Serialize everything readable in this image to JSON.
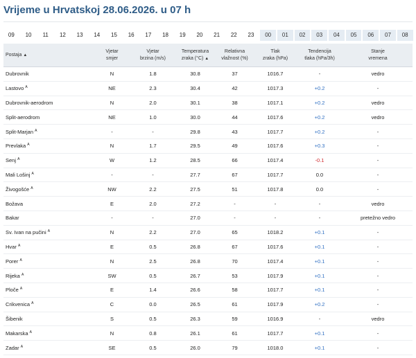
{
  "title": "Vrijeme u Hrvatskoj 28.06.2026. u 07 h",
  "hours": [
    "09",
    "10",
    "11",
    "12",
    "13",
    "14",
    "15",
    "16",
    "17",
    "18",
    "19",
    "20",
    "21",
    "22",
    "23",
    "00",
    "01",
    "02",
    "03",
    "04",
    "05",
    "06",
    "07",
    "08"
  ],
  "next_day_from_index": 15,
  "headers": {
    "station": "Postaja",
    "sort_icon": "▲",
    "wind_dir": [
      "Vjetar",
      "smjer"
    ],
    "wind_speed": [
      "Vjetar",
      "brzina (m/s)"
    ],
    "temp": [
      "Temperatura",
      "zraka (°C)"
    ],
    "humidity": [
      "Relativna",
      "vlažnost (%)"
    ],
    "pressure": [
      "Tlak",
      "zraka (hPa)"
    ],
    "tendency": [
      "Tendencija",
      "tlaka (hPa/3h)"
    ],
    "weather": [
      "Stanje",
      "vremena"
    ]
  },
  "sup_marker": "A",
  "rows": [
    {
      "station": "Dubrovnik",
      "auto": false,
      "dir": "N",
      "speed": "1.8",
      "temp": "30.8",
      "hum": "37",
      "pres": "1016.7",
      "tend": "-",
      "state": "vedro"
    },
    {
      "station": "Lastovo",
      "auto": true,
      "dir": "NE",
      "speed": "2.3",
      "temp": "30.4",
      "hum": "42",
      "pres": "1017.3",
      "tend": "+0.2",
      "state": "-"
    },
    {
      "station": "Dubrovnik-aerodrom",
      "auto": false,
      "dir": "N",
      "speed": "2.0",
      "temp": "30.1",
      "hum": "38",
      "pres": "1017.1",
      "tend": "+0.2",
      "state": "vedro"
    },
    {
      "station": "Split-aerodrom",
      "auto": false,
      "dir": "NE",
      "speed": "1.0",
      "temp": "30.0",
      "hum": "44",
      "pres": "1017.6",
      "tend": "+0.2",
      "state": "vedro"
    },
    {
      "station": "Split-Marjan",
      "auto": true,
      "dir": "-",
      "speed": "-",
      "temp": "29.8",
      "hum": "43",
      "pres": "1017.7",
      "tend": "+0.2",
      "state": "-"
    },
    {
      "station": "Prevlaka",
      "auto": true,
      "dir": "N",
      "speed": "1.7",
      "temp": "29.5",
      "hum": "49",
      "pres": "1017.6",
      "tend": "+0.3",
      "state": "-"
    },
    {
      "station": "Senj",
      "auto": true,
      "dir": "W",
      "speed": "1.2",
      "temp": "28.5",
      "hum": "66",
      "pres": "1017.4",
      "tend": "-0.1",
      "state": "-"
    },
    {
      "station": "Mali Lošinj",
      "auto": true,
      "dir": "-",
      "speed": "-",
      "temp": "27.7",
      "hum": "67",
      "pres": "1017.7",
      "tend": "0.0",
      "state": "-"
    },
    {
      "station": "Živogošće",
      "auto": true,
      "dir": "NW",
      "speed": "2.2",
      "temp": "27.5",
      "hum": "51",
      "pres": "1017.8",
      "tend": "0.0",
      "state": "-"
    },
    {
      "station": "Božava",
      "auto": false,
      "dir": "E",
      "speed": "2.0",
      "temp": "27.2",
      "hum": "-",
      "pres": "-",
      "tend": "-",
      "state": "vedro"
    },
    {
      "station": "Bakar",
      "auto": false,
      "dir": "-",
      "speed": "-",
      "temp": "27.0",
      "hum": "-",
      "pres": "-",
      "tend": "-",
      "state": "pretežno vedro"
    },
    {
      "station": "Sv. Ivan na pučini",
      "auto": true,
      "dir": "N",
      "speed": "2.2",
      "temp": "27.0",
      "hum": "65",
      "pres": "1018.2",
      "tend": "+0.1",
      "state": "-"
    },
    {
      "station": "Hvar",
      "auto": true,
      "dir": "E",
      "speed": "0.5",
      "temp": "26.8",
      "hum": "67",
      "pres": "1017.6",
      "tend": "+0.1",
      "state": "-"
    },
    {
      "station": "Porer",
      "auto": true,
      "dir": "N",
      "speed": "2.5",
      "temp": "26.8",
      "hum": "70",
      "pres": "1017.4",
      "tend": "+0.1",
      "state": "-"
    },
    {
      "station": "Rijeka",
      "auto": true,
      "dir": "SW",
      "speed": "0.5",
      "temp": "26.7",
      "hum": "53",
      "pres": "1017.9",
      "tend": "+0.1",
      "state": "-"
    },
    {
      "station": "Ploče",
      "auto": true,
      "dir": "E",
      "speed": "1.4",
      "temp": "26.6",
      "hum": "58",
      "pres": "1017.7",
      "tend": "+0.1",
      "state": "-"
    },
    {
      "station": "Crikvenica",
      "auto": true,
      "dir": "C",
      "speed": "0.0",
      "temp": "26.5",
      "hum": "61",
      "pres": "1017.9",
      "tend": "+0.2",
      "state": "-"
    },
    {
      "station": "Šibenik",
      "auto": false,
      "dir": "S",
      "speed": "0.5",
      "temp": "26.3",
      "hum": "59",
      "pres": "1016.9",
      "tend": "-",
      "state": "vedro"
    },
    {
      "station": "Makarska",
      "auto": true,
      "dir": "N",
      "speed": "0.8",
      "temp": "26.1",
      "hum": "61",
      "pres": "1017.7",
      "tend": "+0.1",
      "state": "-"
    },
    {
      "station": "Zadar",
      "auto": true,
      "dir": "SE",
      "speed": "0.5",
      "temp": "26.0",
      "hum": "79",
      "pres": "1018.0",
      "tend": "+0.1",
      "state": "-"
    }
  ]
}
